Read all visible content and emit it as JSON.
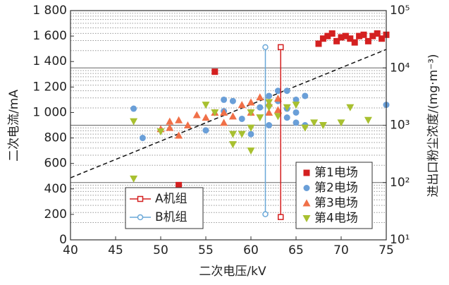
{
  "chart_data": {
    "type": "scatter",
    "x_label": "二次电压/kV",
    "y_label": "二次电流/mA",
    "y2_label": "进出口粉尘浓度/(mg·m⁻³)",
    "xlim": [
      40,
      75
    ],
    "xticks": [
      40,
      45,
      50,
      55,
      60,
      65,
      70,
      75
    ],
    "ylim": [
      0,
      1800
    ],
    "yticks": [
      0,
      200,
      400,
      600,
      800,
      {
        "value": 1000,
        "label": "1 000"
      },
      {
        "value": 1200,
        "label": "1 200"
      },
      {
        "value": 1400,
        "label": "1 400"
      },
      {
        "value": 1600,
        "label": "1 600"
      },
      {
        "value": 1800,
        "label": "1 800"
      }
    ],
    "y2lim": [
      10,
      100000
    ],
    "y2scale": "log",
    "y2ticks": [
      {
        "value": 10,
        "label": "10¹"
      },
      {
        "value": 100,
        "label": "10²"
      },
      {
        "value": 1000,
        "label": "10³"
      },
      {
        "value": 10000,
        "label": "10⁴"
      },
      {
        "value": 100000,
        "label": "10⁵"
      }
    ],
    "y2minorticks": [
      20,
      30,
      40,
      50,
      60,
      70,
      80,
      90,
      200,
      300,
      400,
      500,
      600,
      700,
      800,
      900,
      2000,
      3000,
      4000,
      5000,
      6000,
      7000,
      8000,
      9000,
      20000,
      30000,
      40000,
      50000,
      60000,
      70000,
      80000,
      90000
    ],
    "grid": true,
    "series": [
      {
        "name": "第1电场",
        "color": "#d42020",
        "marker": "square",
        "x": [
          52,
          56,
          67.5,
          68,
          68.5,
          69,
          69.5,
          70,
          70.5,
          71,
          71.5,
          72,
          72.5,
          73,
          73.5,
          74,
          74.5,
          75
        ],
        "values": [
          430,
          1320,
          1540,
          1580,
          1600,
          1620,
          1560,
          1590,
          1600,
          1580,
          1550,
          1600,
          1610,
          1560,
          1600,
          1620,
          1580,
          1610
        ]
      },
      {
        "name": "第2电场",
        "color": "#6a9fd8",
        "marker": "circle",
        "x": [
          47,
          48,
          55,
          57,
          57,
          58,
          59,
          60,
          61,
          62,
          62,
          63,
          63,
          64,
          64,
          64,
          65,
          65,
          65,
          66,
          66,
          75
        ],
        "values": [
          1030,
          800,
          860,
          1100,
          1010,
          1090,
          950,
          830,
          1040,
          900,
          1130,
          1170,
          1090,
          1170,
          960,
          1030,
          1100,
          920,
          1000,
          1130,
          900,
          1060
        ]
      },
      {
        "name": "第3电场",
        "color": "#f07048",
        "marker": "triangle",
        "x": [
          50,
          51,
          51,
          52,
          52,
          53,
          54,
          55,
          56,
          57,
          57,
          58,
          59,
          60,
          60,
          61,
          62,
          62,
          63,
          63
        ],
        "values": [
          870,
          880,
          930,
          940,
          820,
          900,
          980,
          960,
          1000,
          1000,
          920,
          970,
          1060,
          1000,
          1080,
          1120,
          1070,
          1000,
          1020,
          1110
        ]
      },
      {
        "name": "第4电场",
        "color": "#a8c030",
        "marker": "triangle-down",
        "x": [
          47,
          47,
          50,
          55,
          56,
          58,
          58,
          59,
          60,
          60,
          60,
          61,
          62,
          62,
          63,
          64,
          65,
          66,
          67,
          68,
          70,
          71,
          73
        ],
        "values": [
          930,
          480,
          850,
          1060,
          1000,
          830,
          750,
          830,
          700,
          880,
          1000,
          960,
          1040,
          1080,
          970,
          1040,
          1060,
          880,
          920,
          900,
          920,
          1040,
          940
        ]
      }
    ],
    "trend": {
      "x": [
        40,
        75
      ],
      "values": [
        121,
        21000
      ],
      "axis": "y2"
    },
    "units": [
      {
        "name": "A机组",
        "color": "#d42020",
        "marker": "square",
        "x": [
          63.3,
          63.3
        ],
        "values": [
          25,
          23000
        ],
        "axis": "y2"
      },
      {
        "name": "B机组",
        "color": "#6aa8d8",
        "marker": "circle",
        "x": [
          61.6,
          61.6
        ],
        "values": [
          28,
          23000
        ],
        "axis": "y2"
      }
    ]
  }
}
